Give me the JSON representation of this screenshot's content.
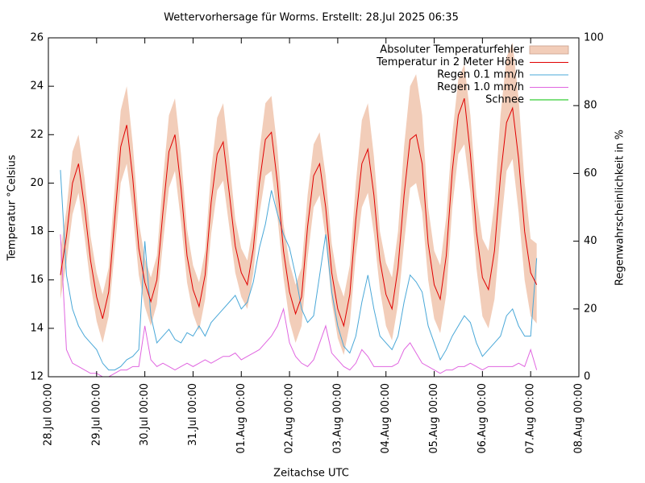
{
  "chart_data": {
    "type": "line",
    "title": "Wettervorhersage für Worms. Erstellt: 28.Jul 2025 06:35",
    "x_label": "Zeitachse UTC",
    "y_label": "Temperatur °Celsius",
    "y2_label": "Regenwahrscheinlichkeit in %",
    "legend": "upper right",
    "xlim": [
      "2025-07-28 00:00",
      "2025-08-08 00:00"
    ],
    "xticks": [
      {
        "value": "2025-07-28 00:00",
        "label": "28.Jul 00:00"
      },
      {
        "value": "2025-07-29 00:00",
        "label": "29.Jul 00:00"
      },
      {
        "value": "2025-07-30 00:00",
        "label": "30.Jul 00:00"
      },
      {
        "value": "2025-07-31 00:00",
        "label": "31.Jul 00:00"
      },
      {
        "value": "2025-08-01 00:00",
        "label": "01.Aug 00:00"
      },
      {
        "value": "2025-08-02 00:00",
        "label": "02.Aug 00:00"
      },
      {
        "value": "2025-08-03 00:00",
        "label": "03.Aug 00:00"
      },
      {
        "value": "2025-08-04 00:00",
        "label": "04.Aug 00:00"
      },
      {
        "value": "2025-08-05 00:00",
        "label": "05.Aug 00:00"
      },
      {
        "value": "2025-08-06 00:00",
        "label": "06.Aug 00:00"
      },
      {
        "value": "2025-08-07 00:00",
        "label": "07.Aug 00:00"
      },
      {
        "value": "2025-08-08 00:00",
        "label": "08.Aug 00:00"
      }
    ],
    "ylim": [
      12,
      26
    ],
    "yticks": [
      12,
      14,
      16,
      18,
      20,
      22,
      24,
      26
    ],
    "y2lim": [
      0,
      100
    ],
    "y2ticks": [
      0,
      20,
      40,
      60,
      80,
      100
    ],
    "x": [
      "2025-07-28 06:00",
      "2025-07-28 09:00",
      "2025-07-28 12:00",
      "2025-07-28 15:00",
      "2025-07-28 18:00",
      "2025-07-28 21:00",
      "2025-07-29 00:00",
      "2025-07-29 03:00",
      "2025-07-29 06:00",
      "2025-07-29 09:00",
      "2025-07-29 12:00",
      "2025-07-29 15:00",
      "2025-07-29 18:00",
      "2025-07-29 21:00",
      "2025-07-30 00:00",
      "2025-07-30 03:00",
      "2025-07-30 06:00",
      "2025-07-30 09:00",
      "2025-07-30 12:00",
      "2025-07-30 15:00",
      "2025-07-30 18:00",
      "2025-07-30 21:00",
      "2025-07-31 00:00",
      "2025-07-31 03:00",
      "2025-07-31 06:00",
      "2025-07-31 09:00",
      "2025-07-31 12:00",
      "2025-07-31 15:00",
      "2025-07-31 18:00",
      "2025-07-31 21:00",
      "2025-08-01 00:00",
      "2025-08-01 03:00",
      "2025-08-01 06:00",
      "2025-08-01 09:00",
      "2025-08-01 12:00",
      "2025-08-01 15:00",
      "2025-08-01 18:00",
      "2025-08-01 21:00",
      "2025-08-02 00:00",
      "2025-08-02 03:00",
      "2025-08-02 06:00",
      "2025-08-02 09:00",
      "2025-08-02 12:00",
      "2025-08-02 15:00",
      "2025-08-02 18:00",
      "2025-08-02 21:00",
      "2025-08-03 00:00",
      "2025-08-03 03:00",
      "2025-08-03 06:00",
      "2025-08-03 09:00",
      "2025-08-03 12:00",
      "2025-08-03 15:00",
      "2025-08-03 18:00",
      "2025-08-03 21:00",
      "2025-08-04 00:00",
      "2025-08-04 03:00",
      "2025-08-04 06:00",
      "2025-08-04 09:00",
      "2025-08-04 12:00",
      "2025-08-04 15:00",
      "2025-08-04 18:00",
      "2025-08-04 21:00",
      "2025-08-05 00:00",
      "2025-08-05 03:00",
      "2025-08-05 06:00",
      "2025-08-05 09:00",
      "2025-08-05 12:00",
      "2025-08-05 15:00",
      "2025-08-05 18:00",
      "2025-08-05 21:00",
      "2025-08-06 00:00",
      "2025-08-06 03:00",
      "2025-08-06 06:00",
      "2025-08-06 09:00",
      "2025-08-06 12:00",
      "2025-08-06 15:00",
      "2025-08-06 18:00",
      "2025-08-06 21:00",
      "2025-08-07 00:00",
      "2025-08-07 03:00"
    ],
    "series": [
      {
        "name": "Absoluter Temperaturfehler",
        "type": "band",
        "color": "#f2cdb9",
        "high": [
          17.2,
          18.9,
          21.3,
          22.0,
          20.2,
          17.8,
          16.3,
          15.4,
          16.5,
          19.8,
          23.0,
          24.0,
          21.6,
          18.4,
          16.9,
          16.1,
          17.0,
          20.1,
          22.8,
          23.5,
          21.2,
          18.1,
          16.6,
          15.9,
          17.2,
          20.5,
          22.7,
          23.3,
          21.0,
          18.5,
          17.3,
          16.8,
          18.3,
          21.3,
          23.3,
          23.6,
          21.4,
          18.3,
          16.7,
          15.8,
          16.5,
          19.5,
          21.6,
          22.1,
          20.3,
          17.5,
          16.0,
          15.3,
          16.6,
          20.0,
          22.6,
          23.3,
          21.1,
          18.0,
          16.7,
          16.1,
          18.0,
          21.5,
          24.0,
          24.5,
          22.8,
          19.0,
          17.2,
          16.6,
          18.6,
          22.0,
          24.3,
          24.9,
          22.8,
          19.5,
          17.7,
          17.2,
          19.2,
          22.8,
          25.2,
          25.8,
          23.5,
          20.0,
          17.7,
          17.5
        ],
        "low": [
          15.2,
          16.7,
          18.7,
          19.6,
          17.8,
          15.8,
          14.3,
          13.4,
          14.5,
          17.2,
          20.0,
          20.8,
          18.8,
          16.2,
          14.9,
          14.1,
          15.0,
          17.5,
          19.8,
          20.5,
          18.4,
          15.9,
          14.6,
          13.9,
          15.2,
          17.9,
          19.7,
          20.1,
          18.2,
          16.3,
          15.3,
          14.8,
          16.3,
          18.7,
          20.3,
          20.5,
          18.6,
          16.1,
          14.3,
          13.4,
          14.1,
          16.9,
          19.0,
          19.5,
          17.7,
          15.1,
          13.6,
          12.9,
          14.2,
          17.0,
          19.0,
          19.6,
          17.9,
          15.6,
          14.1,
          13.5,
          15.0,
          17.5,
          19.8,
          20.0,
          18.8,
          16.0,
          14.4,
          13.8,
          15.4,
          19.0,
          21.2,
          21.6,
          19.6,
          16.5,
          14.5,
          14.0,
          15.2,
          18.0,
          20.5,
          21.0,
          18.8,
          16.0,
          14.5,
          14.2
        ]
      },
      {
        "name": "Temperatur in 2 Meter Höhe",
        "color": "#e00000",
        "values": [
          16.2,
          17.8,
          20.0,
          20.8,
          19.0,
          16.8,
          15.3,
          14.4,
          15.5,
          18.5,
          21.5,
          22.4,
          20.2,
          17.3,
          15.9,
          15.1,
          16.0,
          18.8,
          21.3,
          22.0,
          19.8,
          17.0,
          15.6,
          14.9,
          16.2,
          19.2,
          21.2,
          21.7,
          19.6,
          17.4,
          16.3,
          15.8,
          17.3,
          20.0,
          21.8,
          22.1,
          20.0,
          17.2,
          15.5,
          14.6,
          15.3,
          18.2,
          20.3,
          20.8,
          19.0,
          16.3,
          14.8,
          14.1,
          15.4,
          18.5,
          20.8,
          21.4,
          19.5,
          16.8,
          15.4,
          14.8,
          16.5,
          19.5,
          21.8,
          22.0,
          20.8,
          17.5,
          15.8,
          15.2,
          17.0,
          20.5,
          22.8,
          23.5,
          21.2,
          18.0,
          16.1,
          15.6,
          17.2,
          20.3,
          22.5,
          23.1,
          21.0,
          18.0,
          16.3,
          15.8
        ]
      },
      {
        "name": "Regen 0.1 mm/h",
        "color": "#4aa8d8",
        "axis": "y2",
        "values": [
          61,
          30,
          20,
          15,
          12,
          10,
          8,
          4,
          2,
          2,
          3,
          5,
          6,
          8,
          40,
          18,
          10,
          12,
          14,
          11,
          10,
          13,
          12,
          15,
          12,
          16,
          18,
          20,
          22,
          24,
          20,
          22,
          28,
          38,
          45,
          55,
          48,
          42,
          38,
          30,
          20,
          16,
          18,
          30,
          42,
          25,
          15,
          9,
          7,
          12,
          22,
          30,
          20,
          12,
          10,
          8,
          12,
          22,
          30,
          28,
          25,
          15,
          10,
          5,
          8,
          12,
          15,
          18,
          16,
          10,
          6,
          8,
          10,
          12,
          18,
          20,
          15,
          12,
          12,
          35
        ]
      },
      {
        "name": "Regen 1.0 mm/h",
        "color": "#e066e0",
        "axis": "y2",
        "values": [
          42,
          8,
          4,
          3,
          2,
          1,
          1,
          0,
          0,
          1,
          2,
          2,
          3,
          3,
          15,
          5,
          3,
          4,
          3,
          2,
          3,
          4,
          3,
          4,
          5,
          4,
          5,
          6,
          6,
          7,
          5,
          6,
          7,
          8,
          10,
          12,
          15,
          20,
          10,
          6,
          4,
          3,
          5,
          10,
          15,
          7,
          5,
          3,
          2,
          4,
          8,
          6,
          3,
          3,
          3,
          3,
          4,
          8,
          10,
          7,
          4,
          3,
          2,
          1,
          2,
          2,
          3,
          3,
          4,
          3,
          2,
          3,
          3,
          3,
          3,
          3,
          4,
          3,
          8,
          2
        ]
      },
      {
        "name": "Schnee",
        "color": "#00c000",
        "axis": "y2",
        "values": [
          0,
          0,
          0,
          0,
          0,
          0,
          0,
          0,
          0,
          0,
          0,
          0,
          0,
          0,
          0,
          0,
          0,
          0,
          0,
          0,
          0,
          0,
          0,
          0,
          0,
          0,
          0,
          0,
          0,
          0,
          0,
          0,
          0,
          0,
          0,
          0,
          0,
          0,
          0,
          0,
          0,
          0,
          0,
          0,
          0,
          0,
          0,
          0,
          0,
          0,
          0,
          0,
          0,
          0,
          0,
          0,
          0,
          0,
          0,
          0,
          0,
          0,
          0,
          0,
          0,
          0,
          0,
          0,
          0,
          0,
          0,
          0,
          0,
          0,
          0,
          0,
          0,
          0,
          0,
          0
        ]
      }
    ]
  }
}
